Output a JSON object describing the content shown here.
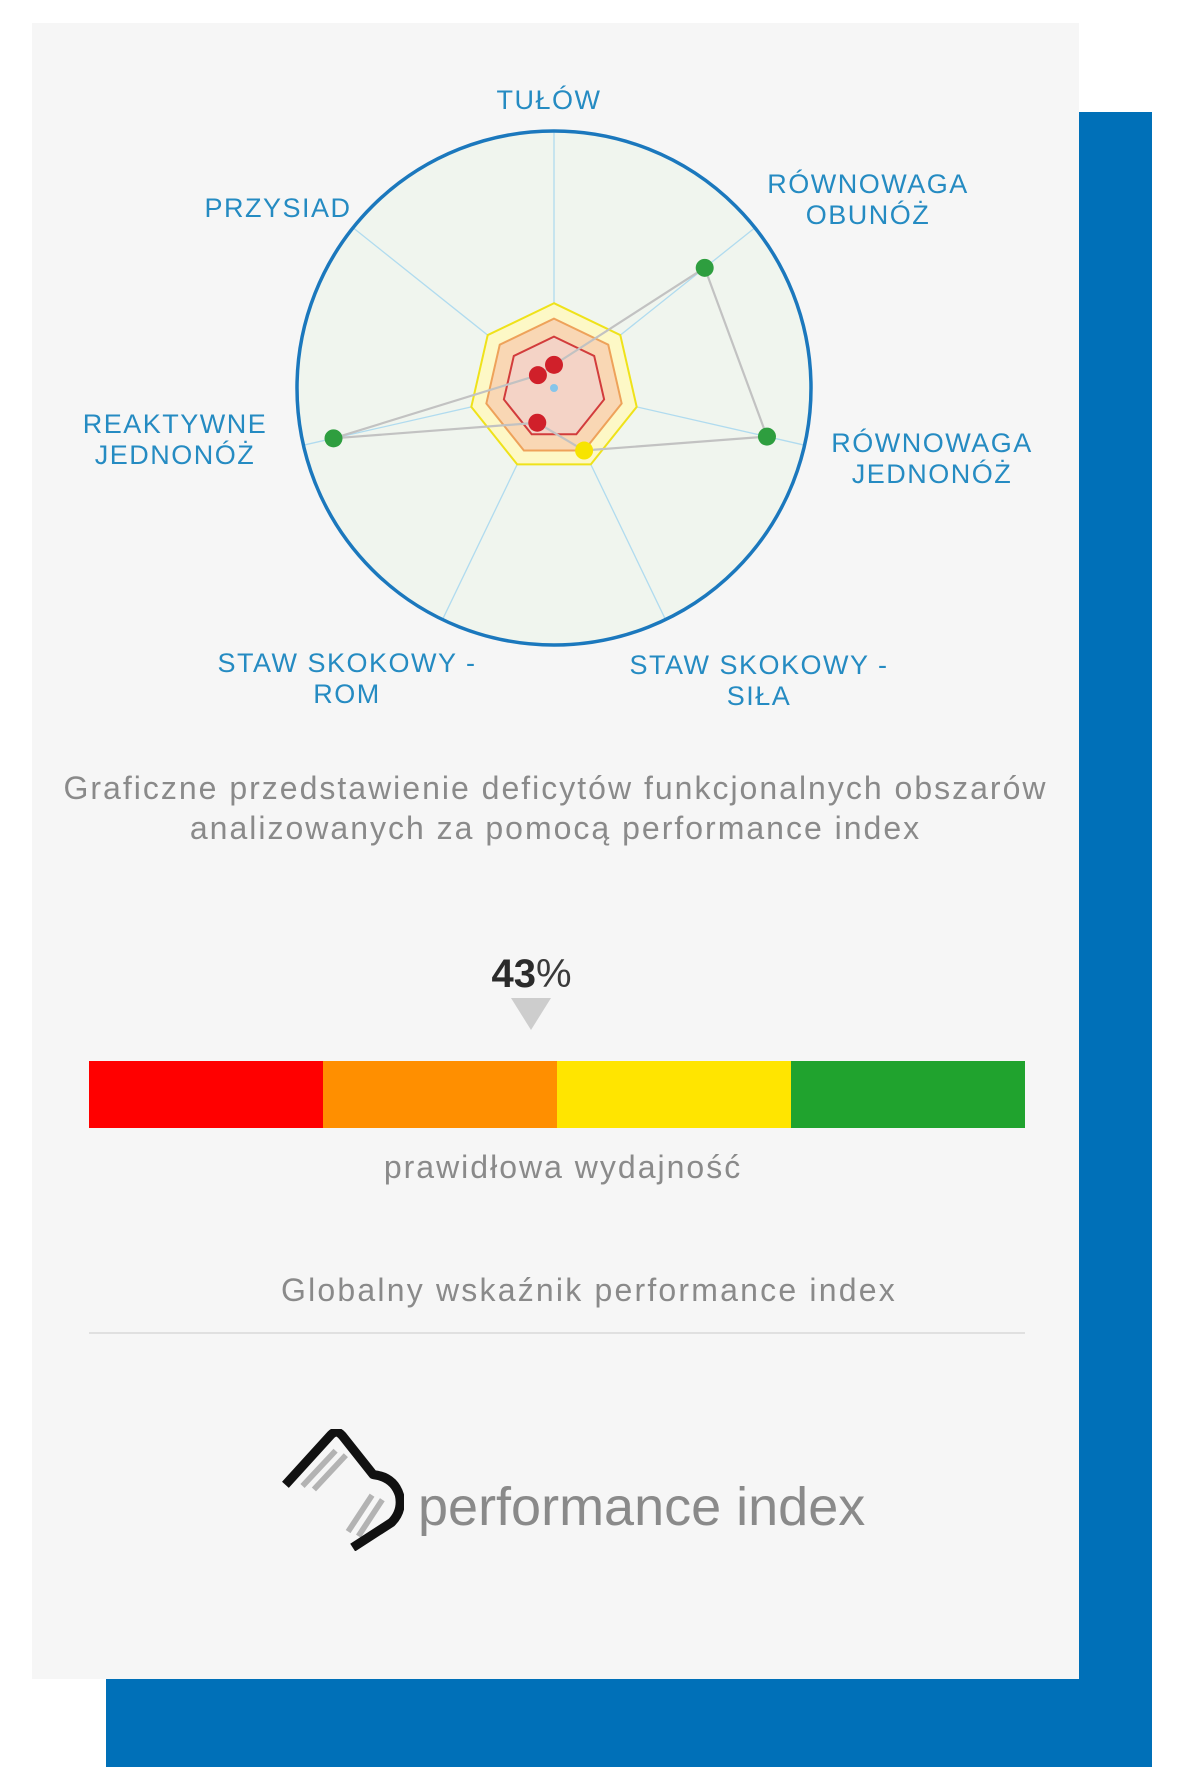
{
  "colors": {
    "backdrop": "#0070b8",
    "card_bg": "#f6f6f6",
    "label_blue": "#258bc2",
    "text_gray": "#8a8a8a",
    "ring_blue": "#1b78bd"
  },
  "chart_data": {
    "type": "radar",
    "range": [
      0,
      1
    ],
    "grid": true,
    "legend": "none",
    "axes": [
      {
        "label": [
          "TUŁÓW"
        ],
        "value": 0.09,
        "color": "#d0202a"
      },
      {
        "label": [
          "RÓWNOWAGA",
          "OBUNÓŻ"
        ],
        "value": 0.75,
        "color": "#2e9e3f"
      },
      {
        "label": [
          "RÓWNOWAGA",
          "JEDNONÓŻ"
        ],
        "value": 0.85,
        "color": "#2e9e3f"
      },
      {
        "label": [
          "STAW SKOKOWY -",
          "SIŁA"
        ],
        "value": 0.27,
        "color": "#f7e400"
      },
      {
        "label": [
          "STAW SKOKOWY -",
          "ROM"
        ],
        "value": 0.15,
        "color": "#d0202a"
      },
      {
        "label": [
          "REAKTYWNE",
          "JEDNONÓŻ"
        ],
        "value": 0.88,
        "color": "#2e9e3f"
      },
      {
        "label": [
          "PRZYSIAD"
        ],
        "value": 0.08,
        "color": "#d0202a"
      }
    ],
    "bands": [
      {
        "value": 0.33,
        "fill": "#fdf8c6",
        "stroke": "#efe21a"
      },
      {
        "value": 0.27,
        "fill": "#f9d7b4",
        "stroke": "#eea25a"
      },
      {
        "value": 0.2,
        "fill": "#f4d3c6",
        "stroke": "#d23c3c"
      }
    ]
  },
  "caption": [
    "Graficzne przedstawienie deficytów funkcjonalnych obszarów",
    "analizowanych za pomocą performance index"
  ],
  "gauge": {
    "value": 43,
    "unit": "%",
    "segments": [
      "#ff0000",
      "#ff8f00",
      "#ffe500",
      "#20a32e"
    ],
    "caption": "prawidłowa wydajność"
  },
  "global_label": "Globalny wskaźnik performance index",
  "logo": {
    "text": "performance index",
    "icon": "performance-index-logo-icon"
  }
}
